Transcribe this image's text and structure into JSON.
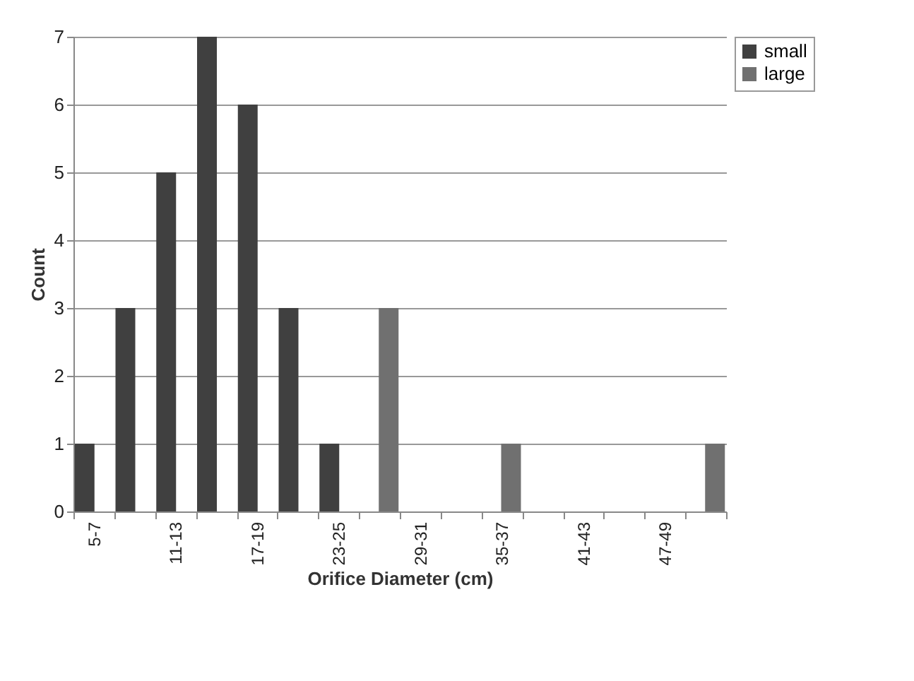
{
  "chart_data": {
    "type": "bar",
    "xlabel": "Orifice Diameter (cm)",
    "ylabel": "Count",
    "categories": [
      "5-7",
      null,
      "11-13",
      null,
      "17-19",
      null,
      "23-25",
      null,
      "29-31",
      null,
      "35-37",
      null,
      "41-43",
      null,
      "47-49",
      null
    ],
    "series": [
      {
        "name": "small",
        "color": "#404040",
        "values": [
          1,
          3,
          5,
          7,
          6,
          3,
          1,
          null,
          null,
          null,
          null,
          null,
          null,
          null,
          null,
          null
        ]
      },
      {
        "name": "large",
        "color": "#707070",
        "values": [
          null,
          null,
          null,
          null,
          null,
          null,
          null,
          3,
          null,
          null,
          1,
          null,
          null,
          null,
          null,
          1
        ]
      }
    ],
    "ylim": [
      0,
      7
    ],
    "yticks": [
      0,
      1,
      2,
      3,
      4,
      5,
      6,
      7
    ],
    "grid": "y",
    "legend": "right"
  }
}
